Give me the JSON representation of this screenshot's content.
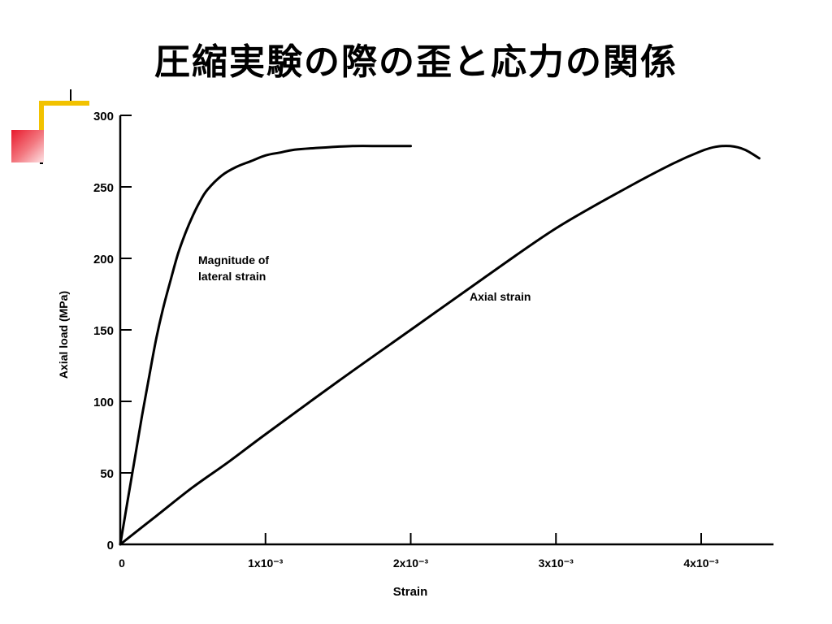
{
  "slide": {
    "title": "圧縮実験の際の歪と応力の関係"
  },
  "colors": {
    "deco_yellow": "#f2c200",
    "deco_red": "#e8192c",
    "curve": "#000000"
  },
  "chart_data": {
    "type": "line",
    "title": "",
    "xlabel": "Strain",
    "ylabel": "Axial load (MPa)",
    "xlim": [
      0,
      0.0045
    ],
    "ylim": [
      0,
      300
    ],
    "grid": false,
    "legend": "none",
    "x_ticks": [
      {
        "value": 0,
        "label": "0"
      },
      {
        "value": 0.001,
        "label": "1x10⁻³"
      },
      {
        "value": 0.002,
        "label": "2x10⁻³"
      },
      {
        "value": 0.003,
        "label": "3x10⁻³"
      },
      {
        "value": 0.004,
        "label": "4x10⁻³"
      }
    ],
    "y_ticks": [
      {
        "value": 0,
        "label": "0"
      },
      {
        "value": 50,
        "label": "50"
      },
      {
        "value": 100,
        "label": "100"
      },
      {
        "value": 150,
        "label": "150"
      },
      {
        "value": 200,
        "label": "200"
      },
      {
        "value": 250,
        "label": "250"
      },
      {
        "value": 300,
        "label": "300"
      }
    ],
    "series": [
      {
        "name": "Magnitude of lateral strain",
        "label_lines": [
          "Magnitude of",
          "lateral strain"
        ],
        "points": [
          [
            0,
            0
          ],
          [
            5e-05,
            30
          ],
          [
            0.0001,
            60
          ],
          [
            0.00015,
            90
          ],
          [
            0.0002,
            118
          ],
          [
            0.00025,
            145
          ],
          [
            0.0003,
            167
          ],
          [
            0.00035,
            186
          ],
          [
            0.0004,
            204
          ],
          [
            0.00045,
            218
          ],
          [
            0.0005,
            230
          ],
          [
            0.00055,
            240
          ],
          [
            0.0006,
            248
          ],
          [
            0.0007,
            258
          ],
          [
            0.0008,
            264
          ],
          [
            0.0009,
            268
          ],
          [
            0.001,
            272
          ],
          [
            0.0011,
            274
          ],
          [
            0.0012,
            276
          ],
          [
            0.0014,
            277.5
          ],
          [
            0.0016,
            278.5
          ],
          [
            0.0018,
            278.5
          ],
          [
            0.002,
            278.5
          ]
        ]
      },
      {
        "name": "Axial strain",
        "label_lines": [
          "Axial strain"
        ],
        "points": [
          [
            0,
            0
          ],
          [
            0.00025,
            20
          ],
          [
            0.0005,
            40
          ],
          [
            0.00075,
            58
          ],
          [
            0.001,
            77
          ],
          [
            0.0015,
            114
          ],
          [
            0.002,
            150
          ],
          [
            0.0025,
            186
          ],
          [
            0.003,
            221
          ],
          [
            0.0035,
            250
          ],
          [
            0.0038,
            266
          ],
          [
            0.004,
            275
          ],
          [
            0.0041,
            278
          ],
          [
            0.0042,
            278.5
          ],
          [
            0.0043,
            276
          ],
          [
            0.0044,
            270
          ]
        ]
      }
    ]
  }
}
